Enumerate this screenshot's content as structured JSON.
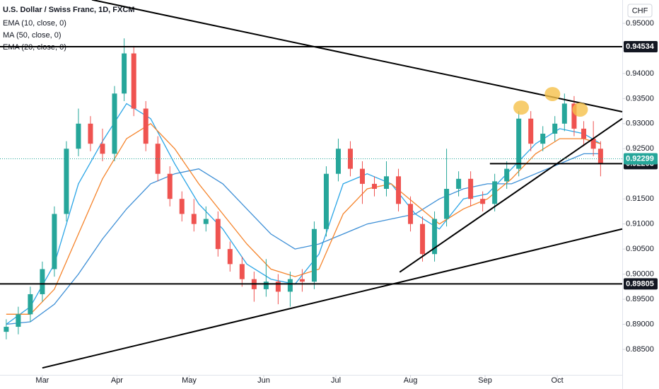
{
  "chart_data": {
    "type": "candlestick",
    "title": "U.S. Dollar / Swiss Franc, 1D, FXCM",
    "currency": "CHF",
    "up_color": "#26a69a",
    "down_color": "#ef5350",
    "xlim": [
      -17.6,
      241
    ],
    "ylim": [
      0.87992,
      0.95465
    ],
    "xticks": [
      {
        "value": 0,
        "label": "Mar"
      },
      {
        "value": 31,
        "label": "Apr"
      },
      {
        "value": 61,
        "label": "May"
      },
      {
        "value": 92,
        "label": "Jun"
      },
      {
        "value": 122,
        "label": "Jul"
      },
      {
        "value": 153,
        "label": "Aug"
      },
      {
        "value": 184,
        "label": "Sep"
      },
      {
        "value": 214,
        "label": "Oct"
      }
    ],
    "yticks": [
      {
        "value": 0.95,
        "label": "0.95000"
      },
      {
        "value": 0.945,
        "label": "0.94500"
      },
      {
        "value": 0.94,
        "label": "0.94000"
      },
      {
        "value": 0.935,
        "label": "0.93500"
      },
      {
        "value": 0.93,
        "label": "0.93000"
      },
      {
        "value": 0.925,
        "label": "0.92500"
      },
      {
        "value": 0.915,
        "label": "0.91500"
      },
      {
        "value": 0.91,
        "label": "0.91000"
      },
      {
        "value": 0.905,
        "label": "0.90500"
      },
      {
        "value": 0.9,
        "label": "0.90000"
      },
      {
        "value": 0.895,
        "label": "0.89500"
      },
      {
        "value": 0.89,
        "label": "0.89000"
      },
      {
        "value": 0.885,
        "label": "0.88500"
      }
    ],
    "candles": {
      "x": [
        -15,
        -10,
        -5,
        0,
        5,
        10,
        15,
        20,
        25,
        30,
        34,
        38,
        43,
        48,
        53,
        58,
        63,
        68,
        73,
        78,
        83,
        88,
        93,
        98,
        103,
        108,
        113,
        118,
        123,
        128,
        133,
        138,
        143,
        148,
        153,
        158,
        163,
        168,
        173,
        178,
        183,
        188,
        193,
        198,
        203,
        208,
        213,
        217,
        221,
        225,
        229,
        232
      ],
      "open": [
        0.8885,
        0.8895,
        0.892,
        0.896,
        0.901,
        0.912,
        0.925,
        0.93,
        0.926,
        0.924,
        0.936,
        0.944,
        0.933,
        0.926,
        0.92,
        0.915,
        0.912,
        0.91,
        0.911,
        0.905,
        0.902,
        0.899,
        0.897,
        0.8985,
        0.8965,
        0.899,
        0.8985,
        0.909,
        0.92,
        0.925,
        0.921,
        0.918,
        0.917,
        0.9195,
        0.914,
        0.91,
        0.904,
        0.911,
        0.917,
        0.919,
        0.915,
        0.914,
        0.9185,
        0.921,
        0.931,
        0.926,
        0.928,
        0.93,
        0.934,
        0.929,
        0.927,
        0.925
      ],
      "high": [
        0.891,
        0.8935,
        0.8975,
        0.9025,
        0.9135,
        0.9265,
        0.933,
        0.9315,
        0.929,
        0.9375,
        0.947,
        0.9455,
        0.9345,
        0.9275,
        0.9215,
        0.9165,
        0.915,
        0.9135,
        0.9125,
        0.9065,
        0.9035,
        0.9005,
        0.903,
        0.9,
        0.9005,
        0.901,
        0.9105,
        0.9215,
        0.927,
        0.9265,
        0.9225,
        0.9195,
        0.9225,
        0.921,
        0.9155,
        0.9115,
        0.9125,
        0.925,
        0.9205,
        0.9205,
        0.9165,
        0.92,
        0.9225,
        0.9325,
        0.9325,
        0.9295,
        0.9315,
        0.936,
        0.9355,
        0.9305,
        0.9305,
        0.9265
      ],
      "low": [
        0.887,
        0.888,
        0.8905,
        0.8945,
        0.8995,
        0.9105,
        0.9235,
        0.9245,
        0.9225,
        0.9225,
        0.9345,
        0.9315,
        0.9245,
        0.9185,
        0.9135,
        0.9105,
        0.9085,
        0.9085,
        0.9035,
        0.9005,
        0.8975,
        0.8945,
        0.8955,
        0.894,
        0.8935,
        0.8965,
        0.897,
        0.9075,
        0.9185,
        0.9195,
        0.914,
        0.9155,
        0.9155,
        0.9125,
        0.9085,
        0.9025,
        0.9025,
        0.9095,
        0.9155,
        0.9135,
        0.9125,
        0.9125,
        0.917,
        0.9195,
        0.9245,
        0.9245,
        0.9265,
        0.9285,
        0.9275,
        0.9255,
        0.9235,
        0.9195
      ],
      "close": [
        0.8895,
        0.892,
        0.896,
        0.901,
        0.912,
        0.925,
        0.93,
        0.926,
        0.924,
        0.936,
        0.944,
        0.933,
        0.926,
        0.92,
        0.915,
        0.912,
        0.91,
        0.911,
        0.905,
        0.902,
        0.899,
        0.897,
        0.8985,
        0.8965,
        0.899,
        0.8985,
        0.909,
        0.92,
        0.925,
        0.921,
        0.918,
        0.917,
        0.9195,
        0.914,
        0.91,
        0.904,
        0.911,
        0.917,
        0.919,
        0.915,
        0.914,
        0.9185,
        0.921,
        0.931,
        0.926,
        0.928,
        0.93,
        0.934,
        0.929,
        0.927,
        0.925,
        0.922
      ]
    },
    "x": [
      -15,
      -5,
      5,
      15,
      25,
      35,
      45,
      55,
      65,
      75,
      85,
      95,
      105,
      115,
      125,
      135,
      145,
      155,
      165,
      175,
      185,
      195,
      205,
      215,
      225,
      232
    ],
    "series": [
      {
        "name": "EMA (10, close, 0)",
        "color": "#2aa5e6",
        "values": [
          0.89,
          0.8935,
          0.902,
          0.918,
          0.9265,
          0.934,
          0.931,
          0.922,
          0.914,
          0.909,
          0.902,
          0.899,
          0.898,
          0.904,
          0.918,
          0.92,
          0.918,
          0.912,
          0.909,
          0.915,
          0.916,
          0.921,
          0.926,
          0.929,
          0.928,
          0.926
        ]
      },
      {
        "name": "MA (50, close, 0)",
        "color": "#3d8fd6",
        "values": [
          0.89,
          0.8905,
          0.894,
          0.9,
          0.907,
          0.913,
          0.918,
          0.92,
          0.921,
          0.918,
          0.913,
          0.908,
          0.905,
          0.906,
          0.908,
          0.91,
          0.911,
          0.912,
          0.915,
          0.917,
          0.918,
          0.918,
          0.92,
          0.922,
          0.924,
          0.924
        ]
      },
      {
        "name": "EMA (20, close, 0)",
        "color": "#f5832a",
        "values": [
          0.892,
          0.892,
          0.897,
          0.908,
          0.919,
          0.927,
          0.93,
          0.925,
          0.918,
          0.912,
          0.906,
          0.901,
          0.8995,
          0.901,
          0.912,
          0.917,
          0.918,
          0.914,
          0.91,
          0.913,
          0.915,
          0.919,
          0.924,
          0.927,
          0.927,
          0.926
        ]
      }
    ],
    "trend_lines": [
      {
        "x": [
          20.6,
          241
        ],
        "y": [
          0.9547,
          0.93237
        ]
      },
      {
        "x": [
          0,
          241
        ],
        "y": [
          0.8813,
          0.909
        ]
      },
      {
        "x": [
          148.5,
          241
        ],
        "y": [
          0.9004,
          0.931
        ]
      }
    ],
    "levels": [
      {
        "value": 0.94534,
        "from": -17.6,
        "label_bg": "#131722"
      },
      {
        "value": 0.89805,
        "from": -17.6,
        "label_bg": "#131722"
      },
      {
        "value": 0.92203,
        "from": 186,
        "label_bg": "#131722"
      }
    ],
    "last_price": {
      "value": 0.92299,
      "label_bg": "#26a69a"
    },
    "highlights": {
      "x": [
        199,
        212,
        223.5
      ],
      "y": [
        0.9332,
        0.9359,
        0.9328
      ],
      "color": "#f5c04a"
    }
  }
}
